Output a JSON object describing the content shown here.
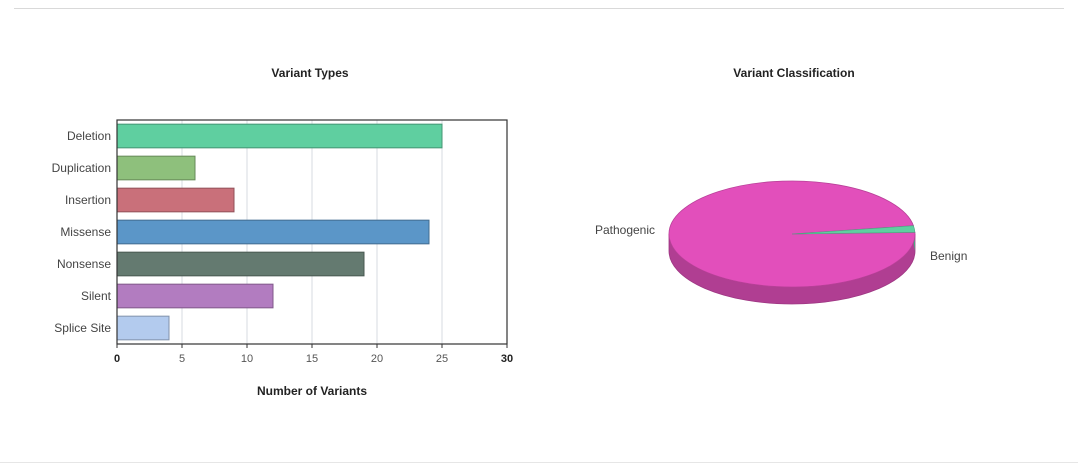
{
  "chart_data": [
    {
      "type": "bar",
      "orientation": "horizontal",
      "title": "Variant Types",
      "xlabel": "Number of Variants",
      "ylabel": "",
      "categories": [
        "Deletion",
        "Duplication",
        "Insertion",
        "Missense",
        "Nonsense",
        "Silent",
        "Splice Site"
      ],
      "values": [
        25,
        6,
        9,
        24,
        19,
        12,
        4
      ],
      "colors": [
        "#5fcfa0",
        "#8ec07c",
        "#c9707a",
        "#5b96c8",
        "#647a70",
        "#b27cc0",
        "#b3cbee"
      ],
      "xlim": [
        0,
        30
      ],
      "xticks": [
        "0",
        "5",
        "10",
        "15",
        "20",
        "25",
        "30"
      ],
      "grid": "vertical"
    },
    {
      "type": "pie",
      "title": "Variant Classification",
      "labels": [
        "Pathogenic",
        "Benign"
      ],
      "values": [
        98,
        2
      ],
      "colors": [
        "#e24fbb",
        "#5fcfa0"
      ],
      "style": "3d"
    }
  ]
}
